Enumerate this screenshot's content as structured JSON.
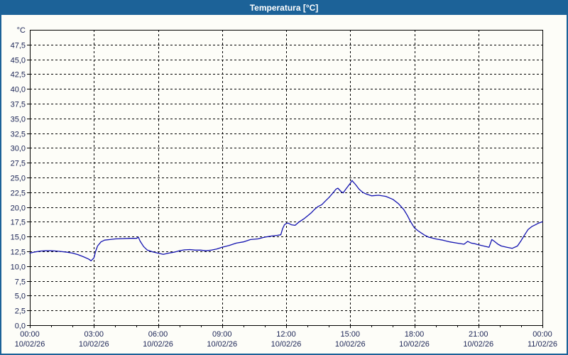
{
  "window": {
    "title": "Temperatura [°C]"
  },
  "colors": {
    "titlebar_bg": "#1c6298",
    "frame_border": "#1c6298",
    "plot_border": "#000000",
    "gridline": "#000000",
    "tick_label": "#1b2455",
    "series_line": "#1212b0",
    "plot_bg": "#fdfdf8"
  },
  "chart_data": {
    "type": "line",
    "title": "Temperatura [°C]",
    "legend": "none",
    "grid": "dashed",
    "y_axis": {
      "unit_label": "°C",
      "min": 0,
      "max": 50,
      "tick_step": 2.5,
      "tick_labels": [
        "0,0",
        "2,5",
        "5,0",
        "7,5",
        "10,0",
        "12,5",
        "15,0",
        "17,5",
        "20,0",
        "22,5",
        "25,0",
        "27,5",
        "30,0",
        "32,5",
        "35,0",
        "37,5",
        "40,0",
        "42,5",
        "45,0",
        "47,5"
      ],
      "tick_values": [
        0,
        2.5,
        5,
        7.5,
        10,
        12.5,
        15,
        17.5,
        20,
        22.5,
        25,
        27.5,
        30,
        32.5,
        35,
        37.5,
        40,
        42.5,
        45,
        47.5
      ]
    },
    "x_axis": {
      "min_hour": 0,
      "max_hour": 24,
      "minor_tick_every_hours": 1,
      "ticks": [
        {
          "hour": 0,
          "time": "00:00",
          "date": "10/02/26"
        },
        {
          "hour": 3,
          "time": "03:00",
          "date": "10/02/26"
        },
        {
          "hour": 6,
          "time": "06:00",
          "date": "10/02/26"
        },
        {
          "hour": 9,
          "time": "09:00",
          "date": "10/02/26"
        },
        {
          "hour": 12,
          "time": "12:00",
          "date": "10/02/26"
        },
        {
          "hour": 15,
          "time": "15:00",
          "date": "10/02/26"
        },
        {
          "hour": 18,
          "time": "18:00",
          "date": "10/02/26"
        },
        {
          "hour": 21,
          "time": "21:00",
          "date": "10/02/26"
        },
        {
          "hour": 24,
          "time": "00:00",
          "date": "11/02/26"
        }
      ]
    },
    "series": [
      {
        "name": "Temperatura",
        "color": "#1212b0",
        "points": [
          [
            0,
            12.2
          ],
          [
            0.25,
            12.4
          ],
          [
            0.5,
            12.55
          ],
          [
            0.75,
            12.6
          ],
          [
            1,
            12.6
          ],
          [
            1.25,
            12.55
          ],
          [
            1.5,
            12.45
          ],
          [
            1.75,
            12.35
          ],
          [
            2,
            12.2
          ],
          [
            2.25,
            11.95
          ],
          [
            2.5,
            11.6
          ],
          [
            2.75,
            11.2
          ],
          [
            2.87,
            10.9
          ],
          [
            3,
            11.4
          ],
          [
            3.08,
            12.5
          ],
          [
            3.17,
            13.4
          ],
          [
            3.33,
            14.1
          ],
          [
            3.5,
            14.4
          ],
          [
            3.75,
            14.5
          ],
          [
            4,
            14.6
          ],
          [
            4.33,
            14.65
          ],
          [
            4.67,
            14.7
          ],
          [
            5,
            14.7
          ],
          [
            5.08,
            14.9
          ],
          [
            5.17,
            14.2
          ],
          [
            5.33,
            13.3
          ],
          [
            5.5,
            12.7
          ],
          [
            5.75,
            12.4
          ],
          [
            6,
            12.2
          ],
          [
            6.25,
            12.0
          ],
          [
            6.5,
            12.2
          ],
          [
            6.75,
            12.35
          ],
          [
            7,
            12.6
          ],
          [
            7.25,
            12.75
          ],
          [
            7.5,
            12.8
          ],
          [
            7.75,
            12.7
          ],
          [
            8,
            12.7
          ],
          [
            8.25,
            12.6
          ],
          [
            8.5,
            12.7
          ],
          [
            8.75,
            12.9
          ],
          [
            9,
            13.2
          ],
          [
            9.33,
            13.5
          ],
          [
            9.67,
            13.9
          ],
          [
            10,
            14.1
          ],
          [
            10.33,
            14.5
          ],
          [
            10.67,
            14.6
          ],
          [
            11,
            14.9
          ],
          [
            11.33,
            15.1
          ],
          [
            11.58,
            15.2
          ],
          [
            11.75,
            15.3
          ],
          [
            11.83,
            16.3
          ],
          [
            11.92,
            17.0
          ],
          [
            12,
            17.2
          ],
          [
            12.08,
            17.3
          ],
          [
            12.25,
            17.0
          ],
          [
            12.42,
            16.9
          ],
          [
            12.58,
            17.4
          ],
          [
            12.83,
            18.0
          ],
          [
            13,
            18.5
          ],
          [
            13.17,
            19.0
          ],
          [
            13.33,
            19.6
          ],
          [
            13.5,
            20.1
          ],
          [
            13.67,
            20.4
          ],
          [
            13.83,
            21.0
          ],
          [
            14,
            21.6
          ],
          [
            14.17,
            22.3
          ],
          [
            14.33,
            23.0
          ],
          [
            14.42,
            23.2
          ],
          [
            14.58,
            22.6
          ],
          [
            14.67,
            22.4
          ],
          [
            14.83,
            23.2
          ],
          [
            15,
            24.0
          ],
          [
            15.08,
            24.5
          ],
          [
            15.25,
            23.8
          ],
          [
            15.42,
            23.0
          ],
          [
            15.58,
            22.5
          ],
          [
            15.75,
            22.2
          ],
          [
            16,
            21.9
          ],
          [
            16.33,
            22.0
          ],
          [
            16.67,
            21.8
          ],
          [
            17,
            21.3
          ],
          [
            17.25,
            20.6
          ],
          [
            17.5,
            19.6
          ],
          [
            17.67,
            18.6
          ],
          [
            17.83,
            17.5
          ],
          [
            18,
            16.5
          ],
          [
            18.17,
            16.0
          ],
          [
            18.33,
            15.6
          ],
          [
            18.5,
            15.2
          ],
          [
            18.67,
            14.9
          ],
          [
            19,
            14.6
          ],
          [
            19.33,
            14.4
          ],
          [
            19.67,
            14.1
          ],
          [
            20,
            13.9
          ],
          [
            20.33,
            13.7
          ],
          [
            20.5,
            14.2
          ],
          [
            20.67,
            13.9
          ],
          [
            20.83,
            13.8
          ],
          [
            21,
            13.6
          ],
          [
            21.25,
            13.4
          ],
          [
            21.5,
            13.2
          ],
          [
            21.63,
            14.5
          ],
          [
            21.75,
            14.2
          ],
          [
            21.92,
            13.7
          ],
          [
            22.08,
            13.4
          ],
          [
            22.33,
            13.2
          ],
          [
            22.58,
            13.0
          ],
          [
            22.83,
            13.4
          ],
          [
            23,
            14.3
          ],
          [
            23.17,
            15.3
          ],
          [
            23.33,
            16.2
          ],
          [
            23.5,
            16.7
          ],
          [
            23.67,
            17.0
          ],
          [
            23.83,
            17.3
          ],
          [
            24,
            17.5
          ]
        ]
      }
    ]
  }
}
